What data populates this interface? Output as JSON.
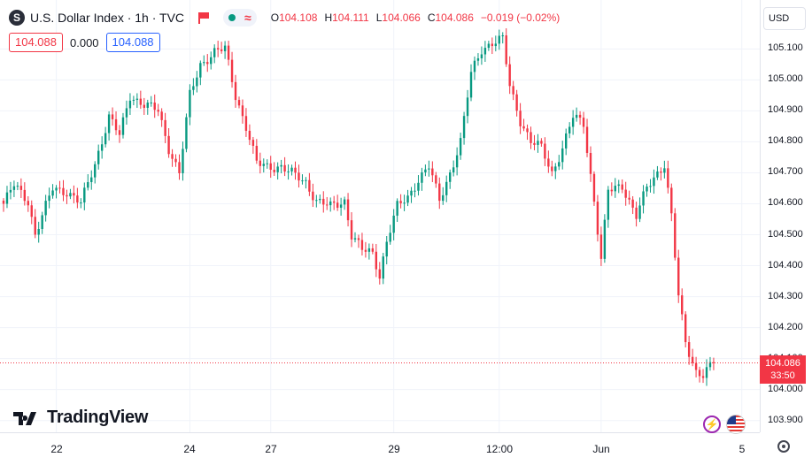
{
  "header": {
    "symbol_icon": "S",
    "title": "U.S. Dollar Index · 1h · TVC",
    "ohlc": {
      "o": "104.108",
      "h": "104.111",
      "l": "104.066",
      "c": "104.086",
      "change": "−0.019 (−0.02%)"
    },
    "ohlc_keys": {
      "o": "O",
      "h": "H",
      "l": "L",
      "c": "C"
    },
    "bid": "104.088",
    "spread": "0.000",
    "ask": "104.088",
    "currency": "USD",
    "status_wave": "≈"
  },
  "last_price": {
    "value": "104.086",
    "countdown": "33:50"
  },
  "logo_text": "TradingView",
  "colors": {
    "up": "#089981",
    "down": "#f23645",
    "accent": "#2962ff",
    "grid": "#f0f3fa"
  },
  "icons": [
    "symbol-icon",
    "flag-icon",
    "dot-icon",
    "wave-icon",
    "bolt-icon",
    "us-flag-icon",
    "settings-icon",
    "tradingview-logo-icon"
  ],
  "chart_data": {
    "type": "candlestick",
    "ylim": [
      103.862,
      105.258
    ],
    "y_ticks": [
      "105.100",
      "105.000",
      "104.900",
      "104.800",
      "104.700",
      "104.600",
      "104.500",
      "104.400",
      "104.300",
      "104.200",
      "104.100",
      "104.000",
      "103.900"
    ],
    "x_ticks": [
      {
        "label": "22",
        "i": 15
      },
      {
        "label": "24",
        "i": 53
      },
      {
        "label": "27",
        "i": 76
      },
      {
        "label": "29",
        "i": 111
      },
      {
        "label": "12:00",
        "i": 141
      },
      {
        "label": "Jun",
        "i": 170
      },
      {
        "label": "5",
        "i": 210
      }
    ],
    "last_value": 104.086,
    "keypoints": [
      [
        0,
        104.6
      ],
      [
        3,
        104.66
      ],
      [
        7,
        104.61
      ],
      [
        9,
        104.5
      ],
      [
        11,
        104.56
      ],
      [
        14,
        104.65
      ],
      [
        18,
        104.64
      ],
      [
        22,
        104.6
      ],
      [
        26,
        104.73
      ],
      [
        30,
        104.88
      ],
      [
        33,
        104.82
      ],
      [
        36,
        104.95
      ],
      [
        40,
        104.92
      ],
      [
        44,
        104.9
      ],
      [
        47,
        104.78
      ],
      [
        50,
        104.7
      ],
      [
        53,
        104.95
      ],
      [
        56,
        105.05
      ],
      [
        60,
        105.09
      ],
      [
        63,
        105.1
      ],
      [
        66,
        104.95
      ],
      [
        69,
        104.85
      ],
      [
        72,
        104.73
      ],
      [
        75,
        104.72
      ],
      [
        79,
        104.72
      ],
      [
        83,
        104.69
      ],
      [
        86,
        104.67
      ],
      [
        89,
        104.61
      ],
      [
        93,
        104.59
      ],
      [
        97,
        104.61
      ],
      [
        99,
        104.5
      ],
      [
        102,
        104.45
      ],
      [
        105,
        104.44
      ],
      [
        107,
        104.37
      ],
      [
        109,
        104.48
      ],
      [
        112,
        104.59
      ],
      [
        115,
        104.62
      ],
      [
        118,
        104.68
      ],
      [
        121,
        104.72
      ],
      [
        124,
        104.61
      ],
      [
        127,
        104.7
      ],
      [
        130,
        104.8
      ],
      [
        133,
        105.02
      ],
      [
        136,
        105.1
      ],
      [
        139,
        105.12
      ],
      [
        142,
        105.13
      ],
      [
        144,
        104.98
      ],
      [
        147,
        104.87
      ],
      [
        150,
        104.8
      ],
      [
        153,
        104.78
      ],
      [
        156,
        104.7
      ],
      [
        159,
        104.78
      ],
      [
        162,
        104.88
      ],
      [
        165,
        104.86
      ],
      [
        168,
        104.61
      ],
      [
        170,
        104.42
      ],
      [
        172,
        104.64
      ],
      [
        176,
        104.66
      ],
      [
        180,
        104.56
      ],
      [
        183,
        104.65
      ],
      [
        186,
        104.7
      ],
      [
        188,
        104.73
      ],
      [
        190,
        104.56
      ],
      [
        192,
        104.3
      ],
      [
        194,
        104.15
      ],
      [
        197,
        104.06
      ],
      [
        199,
        104.05
      ],
      [
        202,
        104.086
      ]
    ]
  }
}
